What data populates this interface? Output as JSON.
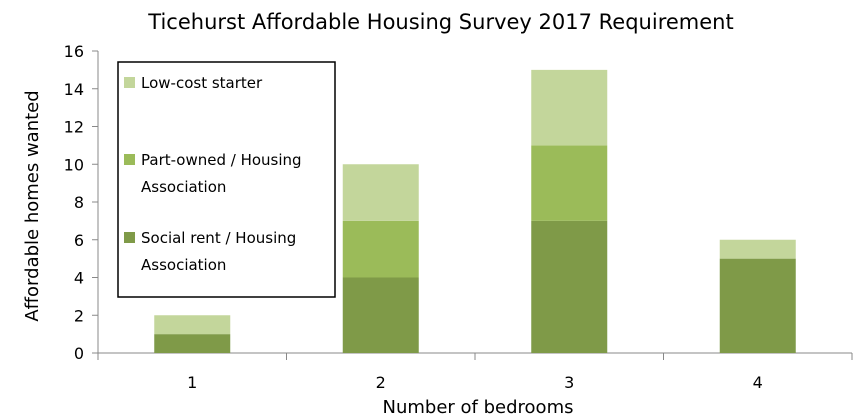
{
  "chart_data": {
    "type": "bar",
    "stacked": true,
    "title": "Ticehurst Affordable Housing Survey 2017 Requirement",
    "xlabel": "Number of bedrooms",
    "ylabel": "Affordable homes wanted",
    "categories": [
      "1",
      "2",
      "3",
      "4"
    ],
    "ylim": [
      0,
      16
    ],
    "yticks": [
      "0",
      "2",
      "4",
      "6",
      "8",
      "10",
      "12",
      "14",
      "16"
    ],
    "grid": false,
    "legend_position": "top-left",
    "series": [
      {
        "name": "Social rent / Housing Association",
        "values": [
          1,
          4,
          7,
          5
        ],
        "color": "#7f9a48"
      },
      {
        "name": "Part-owned / Housing Association",
        "values": [
          0,
          3,
          4,
          0
        ],
        "color": "#9bbb59"
      },
      {
        "name": "Low-cost starter",
        "values": [
          1,
          3,
          4,
          1
        ],
        "color": "#c3d69b"
      }
    ],
    "legend": [
      {
        "line1": "Low-cost starter",
        "line2": "",
        "color": "#c3d69b"
      },
      {
        "line1": "Part-owned / Housing",
        "line2": "Association",
        "color": "#9bbb59"
      },
      {
        "line1": "Social rent / Housing",
        "line2": "Association",
        "color": "#7f9a48"
      }
    ]
  }
}
